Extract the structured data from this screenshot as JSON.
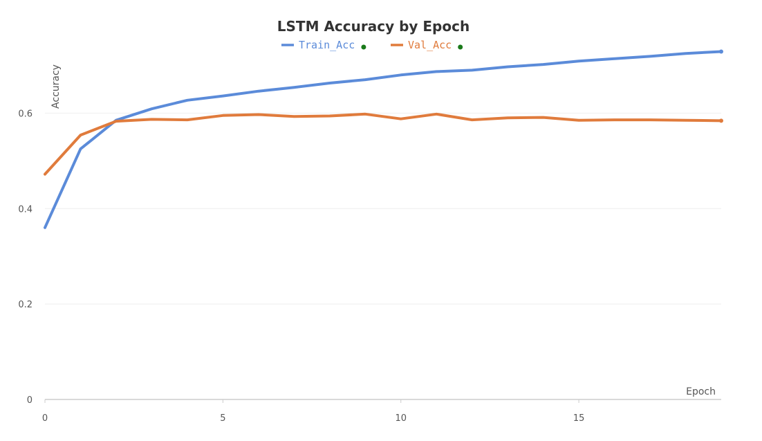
{
  "chart_data": {
    "type": "line",
    "title": "LSTM Accuracy by Epoch",
    "xlabel": "Epoch",
    "ylabel": "Accuracy",
    "x": [
      0,
      1,
      2,
      3,
      4,
      5,
      6,
      7,
      8,
      9,
      10,
      11,
      12,
      13,
      14,
      15,
      16,
      17,
      18,
      19
    ],
    "xlim": [
      0,
      19
    ],
    "ylim": [
      0,
      0.75
    ],
    "xticks": [
      0,
      5,
      10,
      15
    ],
    "yticks": [
      0,
      0.2,
      0.4,
      0.6
    ],
    "xtick_labels": [
      "0",
      "5",
      "10",
      "15"
    ],
    "ytick_labels": [
      "0",
      "0.2",
      "0.4",
      "0.6"
    ],
    "grid": true,
    "legend_position": "top-center",
    "series": [
      {
        "name": "Train_Acc",
        "color": "#5b8bd9",
        "values": [
          0.36,
          0.525,
          0.585,
          0.609,
          0.627,
          0.636,
          0.646,
          0.654,
          0.663,
          0.67,
          0.68,
          0.687,
          0.69,
          0.697,
          0.702,
          0.709,
          0.714,
          0.719,
          0.725,
          0.729
        ]
      },
      {
        "name": "Val_Acc",
        "color": "#e07b3c",
        "values": [
          0.472,
          0.554,
          0.583,
          0.587,
          0.586,
          0.595,
          0.597,
          0.593,
          0.594,
          0.598,
          0.588,
          0.598,
          0.586,
          0.59,
          0.591,
          0.585,
          0.586,
          0.586,
          0.585,
          0.584
        ]
      }
    ],
    "legend_marker_color": "#1a7a1a"
  }
}
